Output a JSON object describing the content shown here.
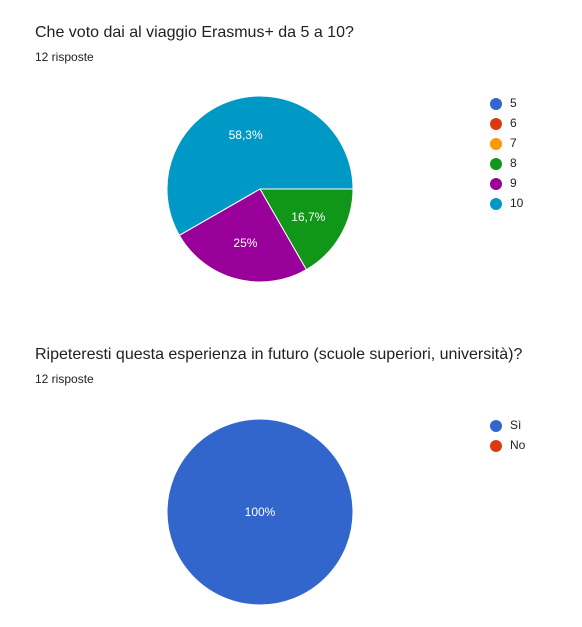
{
  "questions": [
    {
      "title": "Che voto dai al viaggio Erasmus+ da 5 a 10?",
      "responses": "12 risposte"
    },
    {
      "title": "Ripeteresti questa esperienza in futuro (scuole superiori, università)?",
      "responses": "12 risposte"
    }
  ],
  "chart_data": [
    {
      "type": "pie",
      "title": "Che voto dai al viaggio Erasmus+ da 5 a 10?",
      "categories": [
        "5",
        "6",
        "7",
        "8",
        "9",
        "10"
      ],
      "values": [
        0,
        0,
        0,
        16.7,
        25,
        58.3
      ],
      "labels": [
        "",
        "",
        "",
        "16,7%",
        "25%",
        "58,3%"
      ],
      "colors": [
        "#3366cc",
        "#dc3912",
        "#ff9900",
        "#109618",
        "#990099",
        "#0099c6"
      ],
      "legend": "right"
    },
    {
      "type": "pie",
      "title": "Ripeteresti questa esperienza in futuro (scuole superiori, università)?",
      "categories": [
        "Sì",
        "No"
      ],
      "values": [
        100,
        0
      ],
      "labels": [
        "100%",
        ""
      ],
      "colors": [
        "#3366cc",
        "#dc3912"
      ],
      "legend": "right"
    }
  ]
}
